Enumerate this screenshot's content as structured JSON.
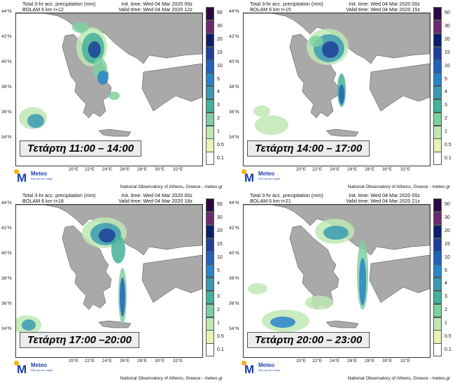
{
  "colors": {
    "sea": "#ffffff",
    "land": "#a9a9a9",
    "border": "#444444"
  },
  "legend_levels": [
    "50",
    "30",
    "20",
    "15",
    "10",
    "5",
    "4",
    "3",
    "2",
    "1",
    "0.5",
    "0.1"
  ],
  "legend_colors": [
    "#2b0a3d",
    "#6a2c70",
    "#0b1e6b",
    "#1f3f99",
    "#2263b8",
    "#2a84c8",
    "#3a9bb0",
    "#43b29a",
    "#7fd0a0",
    "#bfe7b5",
    "#e6f4b8",
    "#ffffff"
  ],
  "lat_labels": [
    "44°N",
    "42°N",
    "40°N",
    "38°N",
    "36°N",
    "34°N"
  ],
  "lon_labels": [
    "20°E",
    "22°E",
    "24°E",
    "26°E",
    "28°E",
    "30°E",
    "32°E"
  ],
  "footer_text": "National Observatory of Athens, Greece - meteo.gr",
  "logo": {
    "name": "Meteo",
    "tagline": "Όλα για τον καιρό"
  },
  "panels": [
    {
      "title": "Total 3-hr acc. precipitation (mm)",
      "model": "BOLAM 6 km t+12",
      "init": "Init. time: Wed 04 Mar 2020 00z",
      "valid": "Valid time: Wed 04 Mar 2020 12z",
      "caption": "Τετάρτη 11:00 – 14:00"
    },
    {
      "title": "Total 3-hr acc. precipitation (mm)",
      "model": "BOLAM 6 km t+15",
      "init": "Init. time: Wed 04 Mar 2020 00z",
      "valid": "Valid time: Wed 04 Mar 2020 15z",
      "caption": "Τετάρτη 14:00 – 17:00"
    },
    {
      "title": "Total 3-hr acc. precipitation (mm)",
      "model": "BOLAM 6 km t+18",
      "init": "Init. time: Wed 04 Mar 2020 00z",
      "valid": "Valid time: Wed 04 Mar 2020 18z",
      "caption": "Τετάρτη 17:00 –20:00"
    },
    {
      "title": "Total 3-hr acc. precipitation (mm)",
      "model": "BOLAM 6 km t+21",
      "init": "Init. time: Wed 04 Mar 2020 00z",
      "valid": "Valid time: Wed 04 Mar 2020 21z",
      "caption": "Τετάρτη 20:00 – 23:00"
    }
  ]
}
